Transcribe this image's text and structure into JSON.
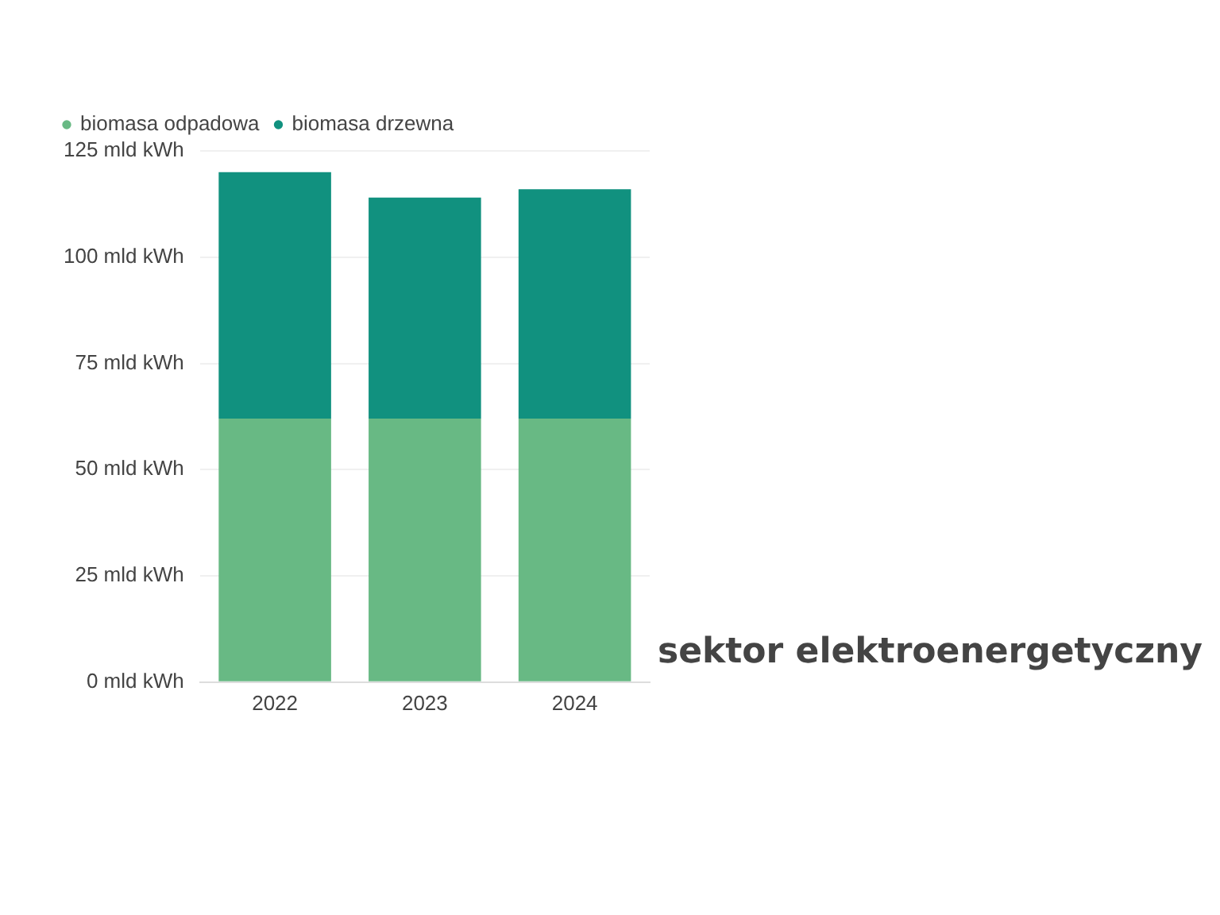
{
  "chart_data": {
    "type": "bar",
    "stacked": true,
    "categories": [
      "2022",
      "2023",
      "2024"
    ],
    "series": [
      {
        "name": "biomasa odpadowa",
        "color": "#68b984",
        "values": [
          62,
          62,
          62
        ]
      },
      {
        "name": "biomasa drzewna",
        "color": "#11917f",
        "values": [
          58,
          52,
          54
        ]
      }
    ],
    "ylim": [
      0,
      125
    ],
    "yticks": [
      {
        "value": 0,
        "label": "0 mld kWh"
      },
      {
        "value": 25,
        "label": "25 mld kWh"
      },
      {
        "value": 50,
        "label": "50 mld kWh"
      },
      {
        "value": 75,
        "label": "75 mld kWh"
      },
      {
        "value": 100,
        "label": "100 mld kWh"
      },
      {
        "value": 125,
        "label": "125 mld kWh"
      }
    ],
    "grid": "y",
    "legend": "top",
    "annotations": [
      "sektor elektroenergetyczny"
    ]
  }
}
